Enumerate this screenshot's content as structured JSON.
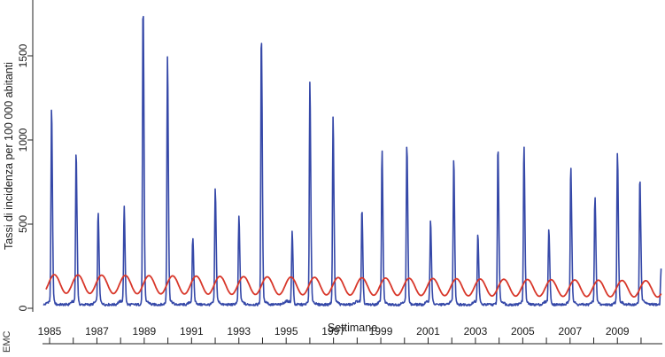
{
  "chart_data": {
    "type": "line",
    "title": "",
    "xlabel": "Settimane",
    "ylabel": "Tassi di incidenza per 100 000 abitanti",
    "xlim": [
      1984.7,
      2010.9
    ],
    "ylim": [
      0,
      1800
    ],
    "y_ticks": [
      0,
      500,
      1000,
      1500
    ],
    "x_ticks": [
      1985,
      1987,
      1989,
      1991,
      1993,
      1995,
      1997,
      1999,
      2001,
      2003,
      2005,
      2007,
      2009
    ],
    "x_minor_ticks": [
      1986,
      1988,
      1990,
      1992,
      1994,
      1996,
      1998,
      2000,
      2002,
      2004,
      2006,
      2008,
      2010
    ],
    "watermark": "EMC",
    "colors": {
      "observed": "#3548a8",
      "baseline": "#d8372a"
    },
    "series": [
      {
        "name": "observed",
        "kind": "weekly-spikes",
        "start_year": 1984.75,
        "end_year": 2010.85,
        "base_level": 15,
        "epidemics": [
          {
            "peak_year": 1985.08,
            "peak": 1150
          },
          {
            "peak_year": 1986.12,
            "peak": 890
          },
          {
            "peak_year": 1987.05,
            "peak": 535
          },
          {
            "peak_year": 1988.15,
            "peak": 565
          },
          {
            "peak_year": 1988.95,
            "peak": 1780
          },
          {
            "peak_year": 1989.98,
            "peak": 1460
          },
          {
            "peak_year": 1991.05,
            "peak": 375
          },
          {
            "peak_year": 1992.0,
            "peak": 665
          },
          {
            "peak_year": 1993.0,
            "peak": 500
          },
          {
            "peak_year": 1993.95,
            "peak": 1600
          },
          {
            "peak_year": 1995.25,
            "peak": 430
          },
          {
            "peak_year": 1996.0,
            "peak": 1300
          },
          {
            "peak_year": 1996.98,
            "peak": 1100
          },
          {
            "peak_year": 1998.2,
            "peak": 555
          },
          {
            "peak_year": 1999.05,
            "peak": 905
          },
          {
            "peak_year": 2000.1,
            "peak": 930
          },
          {
            "peak_year": 2001.1,
            "peak": 480
          },
          {
            "peak_year": 2002.08,
            "peak": 845
          },
          {
            "peak_year": 2003.1,
            "peak": 395
          },
          {
            "peak_year": 2003.95,
            "peak": 930
          },
          {
            "peak_year": 2005.05,
            "peak": 940
          },
          {
            "peak_year": 2006.1,
            "peak": 430
          },
          {
            "peak_year": 2007.03,
            "peak": 815
          },
          {
            "peak_year": 2008.05,
            "peak": 625
          },
          {
            "peak_year": 2009.0,
            "peak": 880
          },
          {
            "peak_year": 2009.95,
            "peak": 745
          }
        ],
        "end_value": 250
      },
      {
        "name": "baseline",
        "kind": "seasonal",
        "start_year": 1984.85,
        "end_year": 2010.85,
        "mean_start": 145,
        "mean_end": 115,
        "amplitude_start": 55,
        "amplitude_end": 48,
        "peak_phase": 0.2
      }
    ]
  }
}
